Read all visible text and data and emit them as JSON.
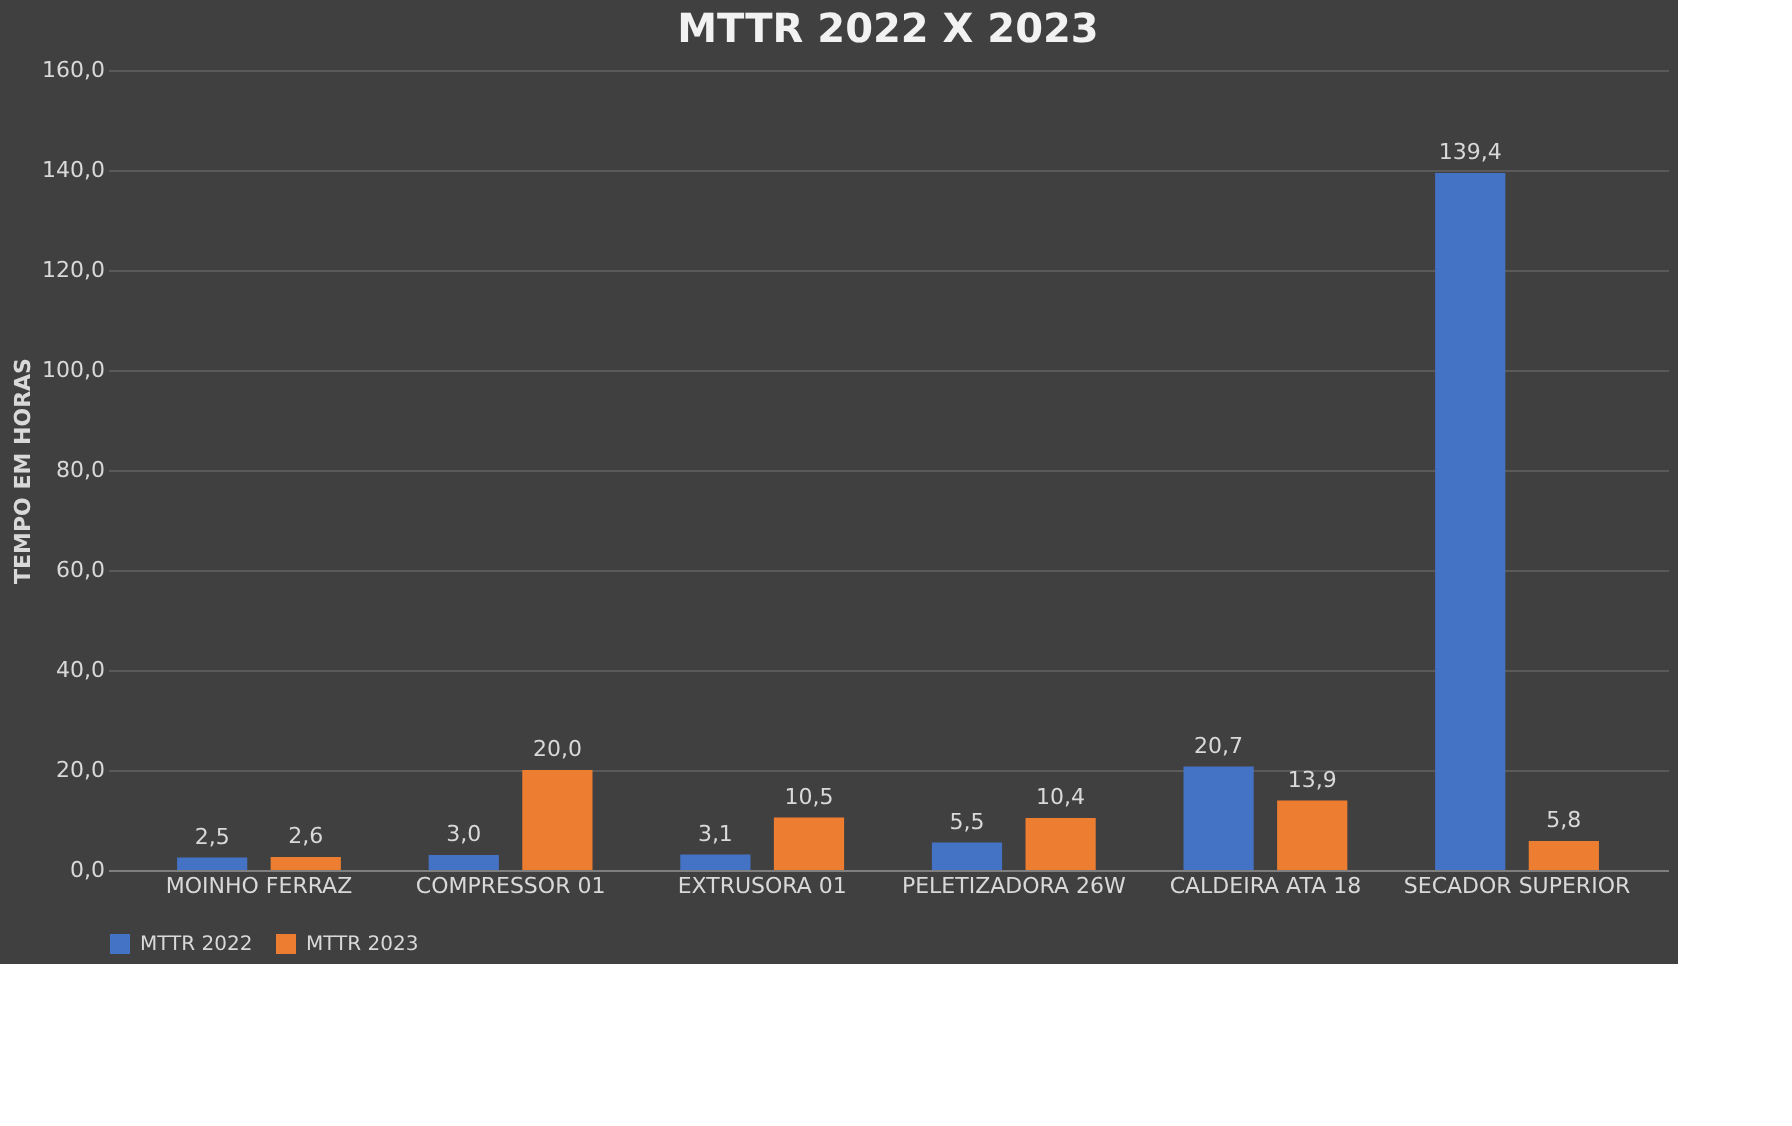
{
  "chart_data": {
    "type": "bar",
    "title": "MTTR 2022 X 2023",
    "ylabel": "TEMPO EM HORAS",
    "categories": [
      "MOINHO FERRAZ",
      "COMPRESSOR 01",
      "EXTRUSORA 01",
      "PELETIZADORA 26W",
      "CALDEIRA ATA 18",
      "SECADOR SUPERIOR"
    ],
    "series": [
      {
        "name": "MTTR 2022",
        "color": "#4472c4",
        "values": [
          2.5,
          3.0,
          3.1,
          5.5,
          20.7,
          139.4
        ],
        "value_labels": [
          "2,5",
          "3,0",
          "3,1",
          "5,5",
          "20,7",
          "139,4"
        ]
      },
      {
        "name": "MTTR 2023",
        "color": "#ed7d31",
        "values": [
          2.6,
          20.0,
          10.5,
          10.4,
          13.9,
          5.8
        ],
        "value_labels": [
          "2,6",
          "20,0",
          "10,5",
          "10,4",
          "13,9",
          "5,8"
        ]
      }
    ],
    "ylim": [
      0,
      160
    ],
    "yticks": [
      {
        "value": 0,
        "label": "0,0"
      },
      {
        "value": 20,
        "label": "20,0"
      },
      {
        "value": 40,
        "label": "40,0"
      },
      {
        "value": 60,
        "label": "60,0"
      },
      {
        "value": 80,
        "label": "80,0"
      },
      {
        "value": 100,
        "label": "100,0"
      },
      {
        "value": 120,
        "label": "120,0"
      },
      {
        "value": 140,
        "label": "140,0"
      },
      {
        "value": 160,
        "label": "160,0"
      }
    ],
    "grid": "y",
    "legend": "bottom"
  }
}
